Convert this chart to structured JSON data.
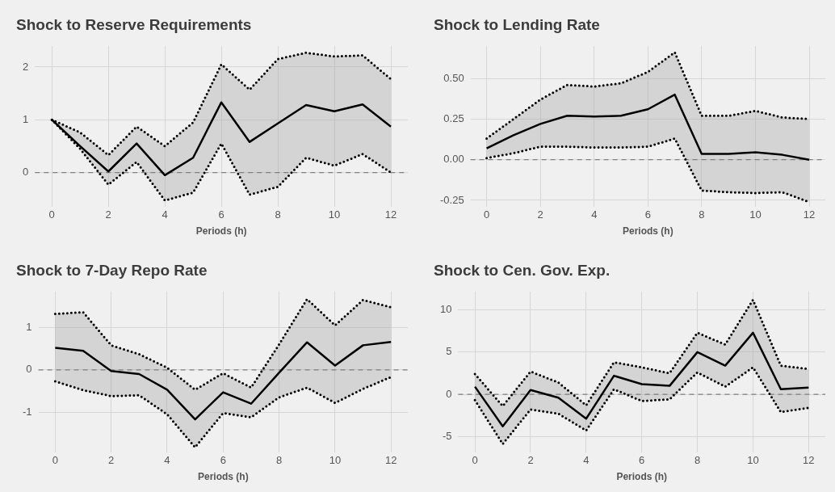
{
  "chart_data": [
    {
      "type": "line",
      "title": "Shock to Reserve Requirements",
      "xlabel": "Periods (h)",
      "x": [
        0,
        1,
        2,
        3,
        4,
        5,
        6,
        7,
        8,
        9,
        10,
        11,
        12
      ],
      "xlim": [
        -0.6,
        12.6
      ],
      "xticks": [
        0,
        2,
        4,
        6,
        8,
        10,
        12
      ],
      "ylim": [
        -0.65,
        2.4
      ],
      "yticks": [
        0,
        1,
        2
      ],
      "grid": true,
      "series": [
        {
          "color": "#000000",
          "values": [
            1.0,
            0.5,
            0.02,
            0.55,
            -0.05,
            0.28,
            1.33,
            0.58,
            0.93,
            1.28,
            1.16,
            1.29,
            0.87
          ],
          "lower": [
            1.0,
            0.45,
            -0.23,
            0.2,
            -0.53,
            -0.38,
            0.55,
            -0.42,
            -0.27,
            0.28,
            0.13,
            0.35,
            0.0
          ],
          "upper": [
            1.0,
            0.76,
            0.33,
            0.87,
            0.5,
            0.95,
            2.05,
            1.57,
            2.15,
            2.27,
            2.2,
            2.22,
            1.77
          ]
        },
        {
          "color": "#000000",
          "line_style": "dotted",
          "values": [
            1.0,
            0.45,
            -0.23,
            0.2,
            -0.53,
            -0.38,
            0.55,
            -0.42,
            -0.27,
            0.28,
            0.13,
            0.35,
            0.0
          ]
        },
        {
          "color": "#000000",
          "line_style": "dotted",
          "values": [
            1.0,
            0.76,
            0.33,
            0.87,
            0.5,
            0.95,
            2.05,
            1.57,
            2.15,
            2.27,
            2.2,
            2.22,
            1.77
          ]
        }
      ],
      "ref_lines": [
        {
          "axis": "y",
          "value": 0,
          "line_style": "dashed",
          "color": "#7f7f7f"
        }
      ]
    },
    {
      "type": "line",
      "title": "Shock to Lending Rate",
      "xlabel": "Periods (h)",
      "x": [
        0,
        1,
        2,
        3,
        4,
        5,
        6,
        7,
        8,
        9,
        10,
        11,
        12
      ],
      "xlim": [
        -0.6,
        12.6
      ],
      "xticks": [
        0,
        2,
        4,
        6,
        8,
        10,
        12
      ],
      "ylim": [
        -0.29,
        0.7
      ],
      "yticks": [
        {
          "value": -0.25,
          "label": "-0.25"
        },
        {
          "value": 0,
          "label": "0.00"
        },
        {
          "value": 0.25,
          "label": "0.25"
        },
        {
          "value": 0.5,
          "label": "0.50"
        }
      ],
      "grid": true,
      "series": [
        {
          "color": "#000000",
          "values": [
            0.07,
            0.15,
            0.22,
            0.27,
            0.265,
            0.27,
            0.31,
            0.4,
            0.035,
            0.035,
            0.045,
            0.03,
            0.0
          ],
          "lower": [
            0.01,
            0.04,
            0.08,
            0.08,
            0.075,
            0.075,
            0.08,
            0.13,
            -0.19,
            -0.2,
            -0.205,
            -0.2,
            -0.26
          ],
          "upper": [
            0.13,
            0.25,
            0.37,
            0.46,
            0.45,
            0.47,
            0.54,
            0.66,
            0.27,
            0.27,
            0.3,
            0.26,
            0.25
          ]
        },
        {
          "color": "#000000",
          "line_style": "dotted",
          "values": [
            0.01,
            0.04,
            0.08,
            0.08,
            0.075,
            0.075,
            0.08,
            0.13,
            -0.19,
            -0.2,
            -0.205,
            -0.2,
            -0.26
          ]
        },
        {
          "color": "#000000",
          "line_style": "dotted",
          "values": [
            0.13,
            0.25,
            0.37,
            0.46,
            0.45,
            0.47,
            0.54,
            0.66,
            0.27,
            0.27,
            0.3,
            0.26,
            0.25
          ]
        }
      ],
      "ref_lines": [
        {
          "axis": "y",
          "value": 0,
          "line_style": "dashed",
          "color": "#7f7f7f"
        }
      ]
    },
    {
      "type": "line",
      "title": "Shock to 7-Day Repo Rate",
      "xlabel": "Periods (h)",
      "x": [
        0,
        1,
        2,
        3,
        4,
        5,
        6,
        7,
        8,
        9,
        10,
        11,
        12
      ],
      "xlim": [
        -0.6,
        12.6
      ],
      "xticks": [
        0,
        2,
        4,
        6,
        8,
        10,
        12
      ],
      "ylim": [
        -1.95,
        1.85
      ],
      "yticks": [
        -1,
        0,
        1
      ],
      "grid": true,
      "series": [
        {
          "color": "#000000",
          "values": [
            0.52,
            0.45,
            -0.03,
            -0.1,
            -0.47,
            -1.17,
            -0.53,
            -0.8,
            -0.07,
            0.65,
            0.1,
            0.58,
            0.66
          ],
          "lower": [
            -0.27,
            -0.48,
            -0.62,
            -0.6,
            -1.05,
            -1.83,
            -1.02,
            -1.12,
            -0.65,
            -0.42,
            -0.78,
            -0.45,
            -0.17
          ],
          "upper": [
            1.32,
            1.36,
            0.58,
            0.37,
            0.05,
            -0.47,
            -0.08,
            -0.42,
            0.6,
            1.67,
            1.05,
            1.65,
            1.48
          ]
        },
        {
          "color": "#000000",
          "line_style": "dotted",
          "values": [
            -0.27,
            -0.48,
            -0.62,
            -0.6,
            -1.05,
            -1.83,
            -1.02,
            -1.12,
            -0.65,
            -0.42,
            -0.78,
            -0.45,
            -0.17
          ]
        },
        {
          "color": "#000000",
          "line_style": "dotted",
          "values": [
            1.32,
            1.36,
            0.58,
            0.37,
            0.05,
            -0.47,
            -0.08,
            -0.42,
            0.6,
            1.67,
            1.05,
            1.65,
            1.48
          ]
        }
      ],
      "ref_lines": [
        {
          "axis": "y",
          "value": 0,
          "line_style": "dashed",
          "color": "#7f7f7f"
        }
      ]
    },
    {
      "type": "line",
      "title": "Shock to Cen. Gov. Exp.",
      "xlabel": "Periods (h)",
      "x": [
        0,
        1,
        2,
        3,
        4,
        5,
        6,
        7,
        8,
        9,
        10,
        11,
        12
      ],
      "xlim": [
        -0.6,
        12.6
      ],
      "xticks": [
        0,
        2,
        4,
        6,
        8,
        10,
        12
      ],
      "ylim": [
        -6.9,
        12.2
      ],
      "yticks": [
        -5,
        0,
        5,
        10
      ],
      "grid": true,
      "series": [
        {
          "color": "#000000",
          "values": [
            0.9,
            -3.8,
            0.5,
            -0.4,
            -2.9,
            2.2,
            1.2,
            1.0,
            5.0,
            3.4,
            7.3,
            0.6,
            0.8
          ],
          "lower": [
            -0.7,
            -5.9,
            -1.8,
            -2.3,
            -4.3,
            0.6,
            -0.8,
            -0.6,
            2.6,
            0.9,
            3.2,
            -2.1,
            -1.6
          ],
          "upper": [
            2.4,
            -1.4,
            2.7,
            1.4,
            -1.3,
            3.8,
            3.2,
            2.5,
            7.3,
            5.9,
            11.2,
            3.4,
            3.0
          ]
        },
        {
          "color": "#000000",
          "line_style": "dotted",
          "values": [
            -0.7,
            -5.9,
            -1.8,
            -2.3,
            -4.3,
            0.6,
            -0.8,
            -0.6,
            2.6,
            0.9,
            3.2,
            -2.1,
            -1.6
          ]
        },
        {
          "color": "#000000",
          "line_style": "dotted",
          "values": [
            2.4,
            -1.4,
            2.7,
            1.4,
            -1.3,
            3.8,
            3.2,
            2.5,
            7.3,
            5.9,
            11.2,
            3.4,
            3.0
          ]
        }
      ],
      "ref_lines": [
        {
          "axis": "y",
          "value": 0,
          "line_style": "dashed",
          "color": "#7f7f7f"
        }
      ]
    }
  ]
}
